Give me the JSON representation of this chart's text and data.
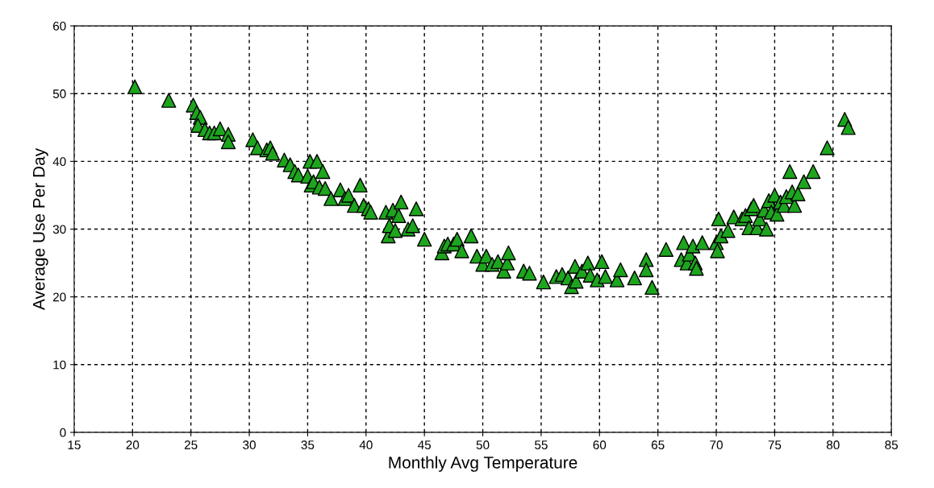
{
  "chart_data": {
    "type": "scatter",
    "xlabel": "Monthly Avg Temperature",
    "ylabel": "Average Use Per Day",
    "xlim": [
      15,
      85
    ],
    "xticks": [
      15,
      20,
      25,
      30,
      35,
      40,
      45,
      50,
      55,
      60,
      65,
      70,
      75,
      80,
      85
    ],
    "ylim": [
      0,
      60
    ],
    "yticks": [
      0,
      10,
      20,
      30,
      40,
      50,
      60
    ],
    "grid": true,
    "marker": "triangle",
    "legend": false,
    "series": [
      {
        "color": "#1ea51e",
        "x": [
          20.2,
          23.1,
          25.2,
          25.5,
          25.8,
          25.6,
          26.2,
          26.6,
          27,
          27.5,
          28.2,
          28.2,
          30.3,
          30.7,
          31.5,
          31.8,
          32,
          33,
          33.5,
          33.9,
          34.2,
          35,
          35.2,
          35.3,
          35.5,
          35.8,
          36,
          36.3,
          36.5,
          37,
          37.8,
          38.2,
          38.5,
          39,
          39.5,
          39.8,
          40.2,
          40.4,
          41.7,
          41.9,
          42,
          42.3,
          42.5,
          42.8,
          43,
          43.6,
          44,
          44.3,
          45,
          46.5,
          46.7,
          47,
          47.5,
          47.8,
          48.2,
          49,
          49.5,
          50,
          50.3,
          50.8,
          51.3,
          51.8,
          52.1,
          52.2,
          53.5,
          54,
          55.2,
          56.3,
          56.8,
          57.3,
          57.6,
          57.9,
          58,
          58.5,
          59,
          59.2,
          59.8,
          60.2,
          60.5,
          61.5,
          61.8,
          63,
          64,
          64,
          64.5,
          65.7,
          67,
          67.2,
          67.5,
          67.7,
          68,
          68.2,
          68.3,
          68.8,
          70,
          70.1,
          70.2,
          70.4,
          71,
          71.5,
          72.2,
          72.5,
          72.8,
          73,
          73.2,
          73.5,
          73.7,
          74.1,
          74.3,
          74.5,
          74.7,
          75,
          75.2,
          75.5,
          75.8,
          76,
          76.3,
          76.5,
          76.7,
          77,
          77.5,
          78.3,
          79.5,
          81,
          81.3
        ],
        "values": [
          51,
          49,
          48.3,
          47.2,
          46.5,
          45.3,
          44.7,
          44.2,
          44.2,
          44.8,
          44,
          42.9,
          43.2,
          42,
          41.7,
          42,
          41.2,
          40.2,
          39.5,
          38.5,
          38,
          37.8,
          40,
          36.5,
          37,
          40,
          36.2,
          38.5,
          36,
          34.5,
          35.8,
          34.5,
          35,
          33.5,
          36.5,
          33.5,
          33,
          32.5,
          32.5,
          29,
          30.5,
          32.8,
          29.8,
          32,
          34,
          30,
          30.5,
          33,
          28.5,
          26.5,
          27.5,
          27.8,
          27.8,
          28.5,
          26.8,
          29,
          26,
          24.8,
          26,
          24.8,
          25.2,
          23.8,
          25,
          26.5,
          23.8,
          23.5,
          22.2,
          23,
          23.3,
          22.8,
          21.5,
          24.5,
          22.3,
          23.8,
          25,
          23.2,
          22.5,
          25.2,
          23,
          22.5,
          24,
          22.8,
          25.5,
          24,
          21.4,
          27,
          25.5,
          28,
          25,
          26.3,
          27.5,
          25,
          24.2,
          28,
          28,
          26.8,
          31.5,
          29,
          29.8,
          31.8,
          31.5,
          32,
          30.2,
          33,
          33.5,
          30.2,
          31.5,
          32.8,
          30,
          34.2,
          32.5,
          35,
          32.2,
          34,
          33.5,
          34.8,
          38.5,
          35.5,
          33.5,
          35.2,
          37,
          38.5,
          42,
          46.2,
          45
        ]
      }
    ]
  }
}
